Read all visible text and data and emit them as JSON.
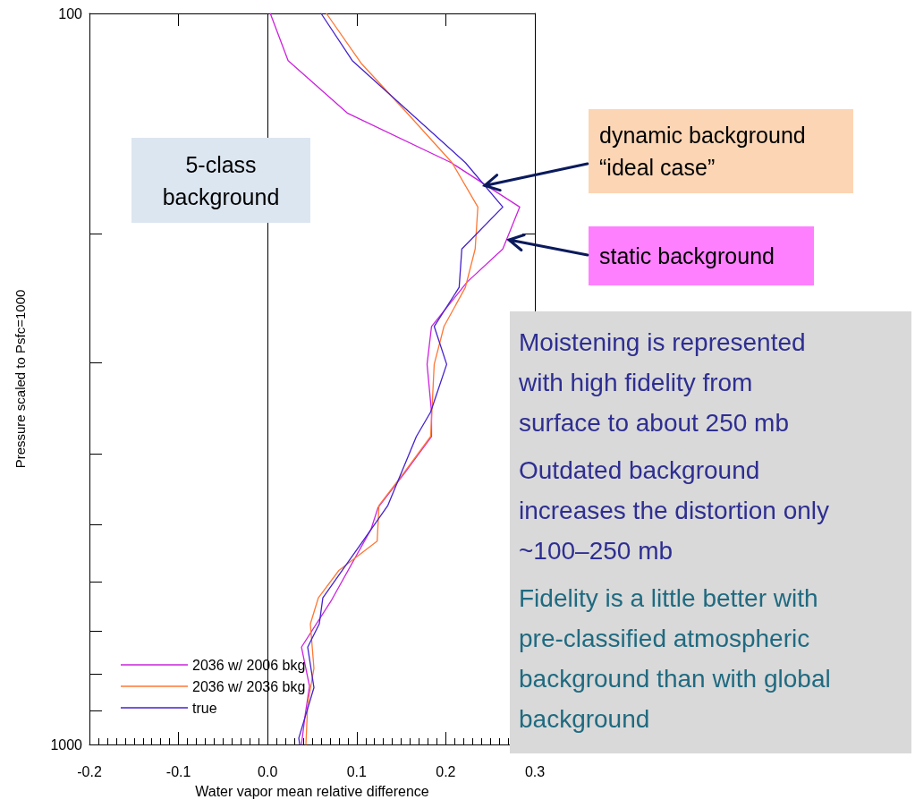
{
  "chart_data": {
    "type": "line",
    "xlabel": "Water vapor mean relative difference",
    "ylabel": "Pressure scaled to Psfc=1000",
    "xlim": [
      -0.2,
      0.3
    ],
    "xticks": [
      {
        "value": -0.2,
        "label": "-0.2"
      },
      {
        "value": -0.1,
        "label": "-0.1"
      },
      {
        "value": 0,
        "label": "0.0"
      },
      {
        "value": 0.1,
        "label": "0.1"
      },
      {
        "value": 0.2,
        "label": "0.2"
      },
      {
        "value": 0.3,
        "label": "0.3"
      }
    ],
    "ylim": [
      1000,
      100
    ],
    "log": "y",
    "yticks": [
      100,
      {
        "value": 200,
        "label": null
      },
      {
        "value": 300,
        "label": null
      },
      {
        "value": 400,
        "label": null
      },
      {
        "value": 500,
        "label": null
      },
      {
        "value": 600,
        "label": null
      },
      {
        "value": 700,
        "label": null
      },
      {
        "value": 800,
        "label": null
      },
      {
        "value": 900,
        "label": null
      },
      1000
    ],
    "ref_lines": [
      {
        "axis": "x",
        "value": 0,
        "label": null,
        "color": "#000000"
      }
    ],
    "legend": "bottom left",
    "series": [
      {
        "name": "2036 w/ 2006 bkg",
        "color": "#cc22dd",
        "x": [
          0.003,
          0.023,
          0.09,
          0.206,
          0.283,
          0.264,
          0.224,
          0.184,
          0.179,
          0.184,
          0.184,
          0.154,
          0.124,
          0.116,
          0.072,
          0.038,
          0.047,
          0.042,
          0.038
        ],
        "values": [
          100,
          116,
          137,
          160,
          184,
          210,
          233,
          268,
          302,
          351,
          379,
          425,
          474,
          508,
          634,
          736,
          832,
          914,
          1000
        ]
      },
      {
        "name": "2036 w/ 2036 bkg",
        "color": "#ff7733",
        "x": [
          0.066,
          0.105,
          0.157,
          0.207,
          0.236,
          0.233,
          0.222,
          0.198,
          0.187,
          0.183,
          0.153,
          0.125,
          0.123,
          0.08,
          0.057,
          0.048,
          0.052,
          0.045,
          0.043
        ],
        "values": [
          100,
          117,
          137,
          160,
          184,
          210,
          237,
          268,
          302,
          379,
          425,
          471,
          527,
          578,
          630,
          684,
          787,
          880,
          1000
        ]
      },
      {
        "name": "true",
        "color": "#4422cc",
        "x": [
          0.06,
          0.095,
          0.222,
          0.264,
          0.218,
          0.215,
          0.187,
          0.201,
          0.183,
          0.167,
          0.135,
          0.107,
          0.062,
          0.058,
          0.045,
          0.052,
          0.035,
          0.036
        ],
        "values": [
          100,
          116,
          160,
          184,
          210,
          237,
          268,
          302,
          351,
          379,
          471,
          527,
          630,
          684,
          736,
          836,
          980,
          1000
        ]
      }
    ],
    "annotations": [
      "5-class background",
      {
        "text": "dynamic background “ideal case”",
        "x": 0.244,
        "y": 172
      },
      {
        "text": "static background",
        "x": 0.271,
        "y": 204
      },
      "Moistening is represented with high fidelity from surface to about 250 mb",
      "Outdated background increases the distortion only ~100–250 mb",
      "Fidelity is a little better with pre-classified atmospheric background than with global background"
    ]
  }
}
